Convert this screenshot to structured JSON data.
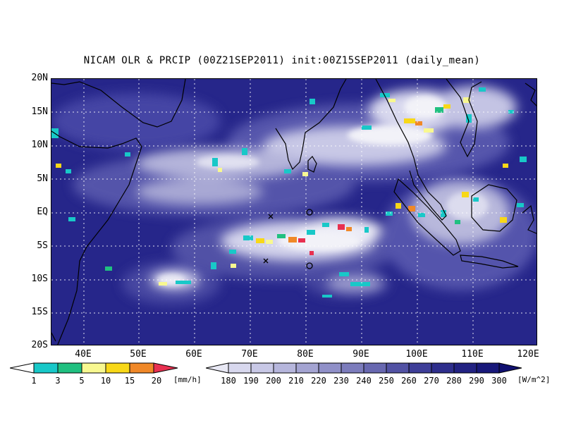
{
  "title": "NICAM OLR & PRCIP (00Z21SEP2011) init:00Z15SEP2011 (daily_mean)",
  "lat_labels": [
    "20N",
    "15N",
    "10N",
    "5N",
    "EQ",
    "5S",
    "10S",
    "15S",
    "20S"
  ],
  "lon_labels": [
    "40E",
    "50E",
    "60E",
    "70E",
    "80E",
    "90E",
    "100E",
    "110E",
    "120E"
  ],
  "precip_colorbar": {
    "labels": [
      "1",
      "3",
      "5",
      "10",
      "15",
      "20"
    ],
    "unit": "[mm/h]",
    "colors": [
      "#18c8c8",
      "#20c080",
      "#f8f890",
      "#f8d818",
      "#f08828",
      "#e83050"
    ]
  },
  "olr_colorbar": {
    "labels": [
      "180",
      "190",
      "200",
      "210",
      "220",
      "230",
      "240",
      "250",
      "260",
      "270",
      "280",
      "290",
      "300"
    ],
    "unit": "[W/m^2]",
    "colors": [
      "#e8e8f4",
      "#d8d8ee",
      "#c8c8e6",
      "#b6b6dc",
      "#a4a4d2",
      "#9090c8",
      "#7c7cbc",
      "#6868b0",
      "#5252a4",
      "#3e3e98",
      "#2e2e8c",
      "#222282",
      "#18187a",
      "#101070"
    ]
  },
  "colors": {
    "ocean_background": "#26268a",
    "cloud_white": "#f2f2f8",
    "coastline": "#000000"
  },
  "markers": {
    "cross": "×",
    "circle": "○"
  }
}
